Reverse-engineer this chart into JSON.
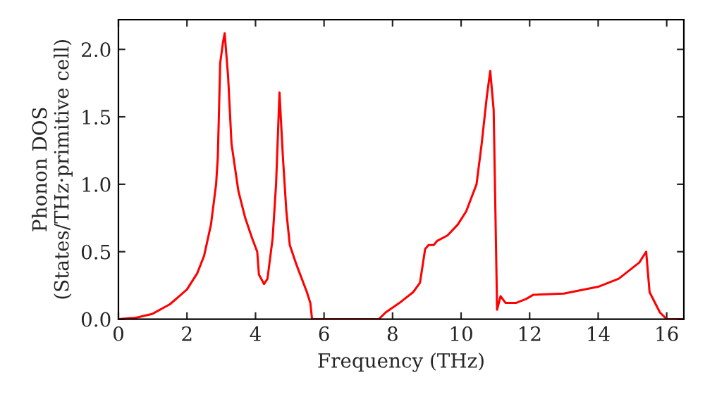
{
  "chart_data": {
    "type": "line",
    "xlabel": "Frequency (THz)",
    "ylabel": "Phonon DOS\n(States/THz·primitive cell)",
    "xlim": [
      0,
      16.5
    ],
    "xticks": [
      0,
      2,
      4,
      6,
      8,
      10,
      12,
      14,
      16
    ],
    "ylim": [
      0,
      2.22
    ],
    "yticks": [
      {
        "value": 0,
        "label": "0.0"
      },
      {
        "value": 0.5,
        "label": "0.5"
      },
      {
        "value": 1.0,
        "label": "1.0"
      },
      {
        "value": 1.5,
        "label": "1.5"
      },
      {
        "value": 2.0,
        "label": "2.0"
      }
    ],
    "grid": false,
    "series": [
      {
        "color": "#ff0000",
        "x": [
          0,
          0.5,
          1,
          1.5,
          2,
          2.3,
          2.5,
          2.7,
          2.85,
          2.9,
          2.97,
          3.05,
          3.1,
          3.2,
          3.3,
          3.5,
          3.7,
          3.9,
          4.05,
          4.1,
          4.25,
          4.35,
          4.5,
          4.6,
          4.7,
          4.8,
          4.9,
          5.0,
          5.2,
          5.5,
          5.6,
          5.65,
          7.6,
          7.8,
          8.2,
          8.6,
          8.8,
          8.95,
          9.05,
          9.2,
          9.3,
          9.6,
          9.9,
          10.15,
          10.3,
          10.45,
          10.6,
          10.75,
          10.85,
          10.95,
          11.05,
          11.15,
          11.3,
          11.6,
          11.9,
          12.1,
          13,
          14,
          14.6,
          15.2,
          15.4,
          15.5,
          15.8,
          16,
          16.5
        ],
        "values": [
          0,
          0.01,
          0.04,
          0.11,
          0.22,
          0.34,
          0.47,
          0.7,
          1.0,
          1.2,
          1.9,
          2.05,
          2.12,
          1.8,
          1.3,
          0.95,
          0.75,
          0.6,
          0.5,
          0.33,
          0.26,
          0.3,
          0.6,
          1.0,
          1.68,
          1.2,
          0.8,
          0.55,
          0.4,
          0.2,
          0.12,
          0,
          0,
          0.05,
          0.12,
          0.2,
          0.27,
          0.52,
          0.55,
          0.55,
          0.58,
          0.62,
          0.7,
          0.8,
          0.9,
          1.0,
          1.3,
          1.65,
          1.84,
          1.55,
          0.07,
          0.17,
          0.12,
          0.12,
          0.15,
          0.18,
          0.19,
          0.24,
          0.3,
          0.42,
          0.5,
          0.2,
          0.05,
          0,
          0
        ]
      }
    ]
  }
}
